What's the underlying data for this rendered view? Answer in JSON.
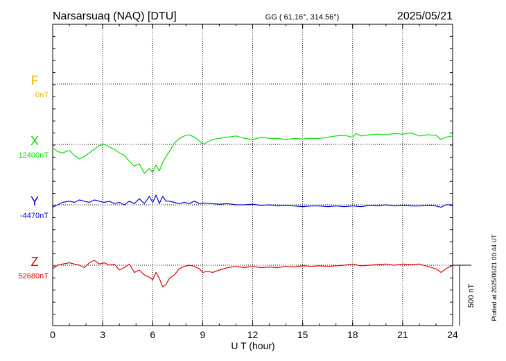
{
  "header": {
    "station": "Narsarsuaq (NAQ)  [DTU]",
    "coords": "GG ( 61.16°, 314.56°)",
    "date": "2025/05/21"
  },
  "footer_note": "Plotted at 2025/06/21 00:44 UT",
  "colors": {
    "F": "#f0b000",
    "X": "#00e000",
    "Y": "#0000d0",
    "Z": "#e00000"
  },
  "chart_data": {
    "type": "line",
    "xlabel": "U T (hour)",
    "xlim": [
      0,
      24
    ],
    "xticks": [
      "0",
      "3",
      "6",
      "9",
      "12",
      "15",
      "18",
      "21",
      "24"
    ],
    "scale_bar": "500 nT",
    "channels": [
      {
        "name": "F",
        "baseline_label": "0nT",
        "baseline_nT": 0,
        "x": [],
        "y": []
      },
      {
        "name": "X",
        "baseline_label": "12400nT",
        "baseline_nT": 12400,
        "x": [
          0,
          0.3,
          0.6,
          1,
          1.3,
          1.6,
          1.9,
          2.2,
          2.5,
          2.8,
          3.1,
          3.4,
          3.7,
          4,
          4.3,
          4.6,
          4.9,
          5.2,
          5.5,
          5.8,
          6,
          6.2,
          6.4,
          6.6,
          6.8,
          7,
          7.3,
          7.6,
          7.9,
          8.2,
          8.5,
          8.8,
          9,
          9.3,
          9.6,
          10,
          10.5,
          11,
          11.5,
          12,
          12.5,
          13,
          13.5,
          14,
          14.5,
          15,
          15.5,
          16,
          16.5,
          17,
          17.5,
          18,
          18.2,
          18.5,
          19,
          19.5,
          20,
          20.5,
          21,
          21.5,
          22,
          22.5,
          23,
          23.3,
          23.6,
          24
        ],
        "y": [
          12370,
          12340,
          12330,
          12350,
          12310,
          12280,
          12300,
          12330,
          12360,
          12390,
          12400,
          12380,
          12360,
          12330,
          12310,
          12260,
          12220,
          12240,
          12160,
          12200,
          12170,
          12230,
          12180,
          12250,
          12300,
          12340,
          12410,
          12450,
          12470,
          12480,
          12460,
          12430,
          12400,
          12420,
          12440,
          12450,
          12460,
          12470,
          12450,
          12440,
          12460,
          12450,
          12450,
          12440,
          12450,
          12445,
          12450,
          12450,
          12460,
          12470,
          12475,
          12460,
          12490,
          12470,
          12480,
          12485,
          12480,
          12490,
          12485,
          12495,
          12470,
          12480,
          12475,
          12440,
          12460,
          12470
        ]
      },
      {
        "name": "Y",
        "baseline_label": "-4470nT",
        "baseline_nT": -4470,
        "x": [
          0,
          0.3,
          0.6,
          1,
          1.3,
          1.6,
          1.9,
          2.2,
          2.5,
          2.8,
          3.1,
          3.4,
          3.7,
          4,
          4.3,
          4.6,
          4.9,
          5.2,
          5.5,
          5.8,
          6,
          6.2,
          6.4,
          6.6,
          6.8,
          7,
          7.3,
          7.6,
          7.9,
          8.2,
          8.5,
          8.8,
          9,
          9.5,
          10,
          10.5,
          11,
          11.5,
          12,
          12.5,
          13,
          13.5,
          14,
          14.5,
          15,
          15.5,
          16,
          16.5,
          17,
          17.5,
          18,
          18.5,
          19,
          19.5,
          20,
          20.5,
          21,
          21.5,
          22,
          22.5,
          23,
          23.3,
          23.6,
          24
        ],
        "y": [
          -4490,
          -4470,
          -4450,
          -4440,
          -4450,
          -4430,
          -4440,
          -4450,
          -4430,
          -4440,
          -4450,
          -4440,
          -4460,
          -4450,
          -4470,
          -4440,
          -4460,
          -4420,
          -4460,
          -4400,
          -4450,
          -4390,
          -4460,
          -4400,
          -4440,
          -4440,
          -4450,
          -4460,
          -4450,
          -4460,
          -4440,
          -4460,
          -4455,
          -4460,
          -4465,
          -4460,
          -4470,
          -4470,
          -4465,
          -4475,
          -4470,
          -4480,
          -4475,
          -4480,
          -4485,
          -4480,
          -4480,
          -4485,
          -4480,
          -4485,
          -4480,
          -4485,
          -4475,
          -4480,
          -4470,
          -4480,
          -4475,
          -4480,
          -4480,
          -4475,
          -4480,
          -4490,
          -4470,
          -4470
        ]
      },
      {
        "name": "Z",
        "baseline_label": "52680nT",
        "baseline_nT": 52680,
        "x": [
          0,
          0.3,
          0.6,
          1,
          1.3,
          1.6,
          1.9,
          2.2,
          2.5,
          2.8,
          3.1,
          3.4,
          3.7,
          4,
          4.3,
          4.6,
          4.9,
          5.2,
          5.5,
          5.8,
          6,
          6.2,
          6.4,
          6.6,
          6.8,
          7,
          7.3,
          7.6,
          7.9,
          8.2,
          8.5,
          8.8,
          9,
          9.3,
          9.6,
          10,
          10.5,
          11,
          11.5,
          12,
          12.5,
          13,
          13.5,
          14,
          14.5,
          15,
          15.5,
          16,
          16.5,
          17,
          17.5,
          18,
          18.5,
          19,
          19.5,
          20,
          20.5,
          21,
          21.5,
          22,
          22.5,
          23,
          23.3,
          23.6,
          24
        ],
        "y": [
          52650,
          52680,
          52690,
          52700,
          52690,
          52680,
          52660,
          52700,
          52720,
          52690,
          52700,
          52680,
          52690,
          52640,
          52660,
          52690,
          52620,
          52640,
          52600,
          52580,
          52560,
          52620,
          52570,
          52500,
          52520,
          52570,
          52600,
          52650,
          52670,
          52680,
          52670,
          52650,
          52620,
          52630,
          52620,
          52640,
          52660,
          52670,
          52660,
          52670,
          52660,
          52665,
          52660,
          52670,
          52665,
          52675,
          52670,
          52675,
          52670,
          52675,
          52680,
          52690,
          52675,
          52680,
          52685,
          52690,
          52680,
          52690,
          52685,
          52690,
          52670,
          52650,
          52620,
          52650,
          52680
        ]
      }
    ]
  }
}
